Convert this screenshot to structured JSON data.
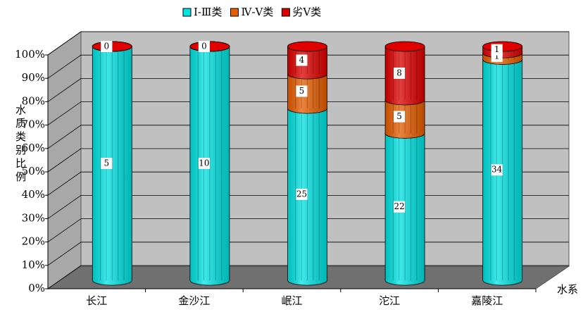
{
  "chart_data": {
    "type": "bar",
    "stacked": true,
    "percent_stacked": true,
    "y_label": "水质类别比例",
    "x_label": "水系",
    "categories": [
      "长江",
      "金沙江",
      "岷江",
      "沱江",
      "嘉陵江"
    ],
    "series": [
      {
        "name": "Ⅰ-Ⅲ类",
        "color": "#00e3e3",
        "values": [
          5,
          10,
          25,
          22,
          34
        ]
      },
      {
        "name": "Ⅳ-Ⅴ类",
        "color": "#e85d00",
        "values": [
          0,
          0,
          5,
          5,
          1
        ]
      },
      {
        "name": "劣Ⅴ类",
        "color": "#e00000",
        "values": [
          0,
          0,
          4,
          8,
          1
        ]
      }
    ],
    "ylim": [
      0,
      100
    ],
    "yticks": [
      {
        "value": 0,
        "label": "0%"
      },
      {
        "value": 10,
        "label": "10%"
      },
      {
        "value": 20,
        "label": "20%"
      },
      {
        "value": 30,
        "label": "30%"
      },
      {
        "value": 40,
        "label": "40%"
      },
      {
        "value": 50,
        "label": "50%"
      },
      {
        "value": 60,
        "label": "60%"
      },
      {
        "value": 70,
        "label": "70%"
      },
      {
        "value": 80,
        "label": "80%"
      },
      {
        "value": 90,
        "label": "90%"
      },
      {
        "value": 100,
        "label": "100%"
      }
    ],
    "grid": true,
    "legend": "top"
  }
}
